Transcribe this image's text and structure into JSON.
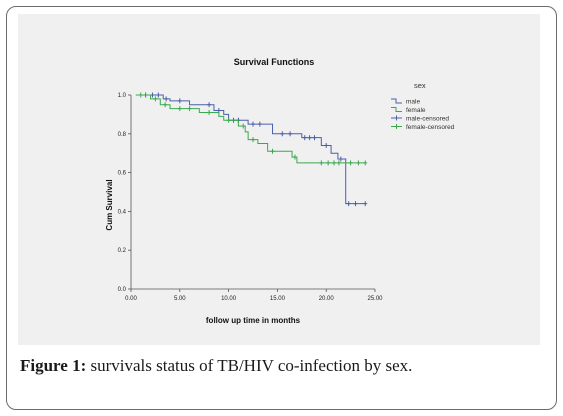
{
  "chart_data": {
    "type": "line",
    "title": "Survival Functions",
    "xlabel": "follow up time in months",
    "ylabel": "Cum Survival",
    "xlim": [
      0,
      25
    ],
    "ylim": [
      0,
      1.0
    ],
    "x_ticks": [
      {
        "value": 0,
        "label": "0.00"
      },
      {
        "value": 5,
        "label": "5.00"
      },
      {
        "value": 10,
        "label": "10.00"
      },
      {
        "value": 15,
        "label": "15.00"
      },
      {
        "value": 20,
        "label": "20.00"
      },
      {
        "value": 25,
        "label": "25.00"
      }
    ],
    "y_ticks": [
      {
        "value": 0,
        "label": "0.0"
      },
      {
        "value": 0.2,
        "label": "0.2"
      },
      {
        "value": 0.4,
        "label": "0.4"
      },
      {
        "value": 0.6,
        "label": "0.6"
      },
      {
        "value": 0.8,
        "label": "0.8"
      },
      {
        "value": 1.0,
        "label": "1.0"
      }
    ],
    "grid": false,
    "legend_title": "sex",
    "legend_position": "right",
    "legend": [
      {
        "label": "male",
        "kind": "line",
        "color": "#4a5fa8"
      },
      {
        "label": "female",
        "kind": "line",
        "color": "#3aa84e"
      },
      {
        "label": "male-censored",
        "kind": "censor",
        "color": "#4a5fa8"
      },
      {
        "label": "female-censored",
        "kind": "censor",
        "color": "#3aa84e"
      }
    ],
    "series": [
      {
        "name": "male",
        "color": "#4a5fa8",
        "steps": [
          [
            0.5,
            1.0
          ],
          [
            3.3,
            0.98
          ],
          [
            4.0,
            0.97
          ],
          [
            6.0,
            0.95
          ],
          [
            8.5,
            0.92
          ],
          [
            9.5,
            0.9
          ],
          [
            10.0,
            0.87
          ],
          [
            12.0,
            0.85
          ],
          [
            14.5,
            0.8
          ],
          [
            17.5,
            0.78
          ],
          [
            19.5,
            0.74
          ],
          [
            20.5,
            0.7
          ],
          [
            21.2,
            0.67
          ],
          [
            22.0,
            0.44
          ],
          [
            24.0,
            0.44
          ]
        ],
        "censored": [
          [
            1.5,
            1.0
          ],
          [
            2.2,
            1.0
          ],
          [
            2.8,
            1.0
          ],
          [
            3.6,
            0.98
          ],
          [
            5.0,
            0.97
          ],
          [
            8.0,
            0.95
          ],
          [
            9.0,
            0.92
          ],
          [
            10.5,
            0.87
          ],
          [
            11.0,
            0.87
          ],
          [
            12.5,
            0.85
          ],
          [
            13.2,
            0.85
          ],
          [
            15.5,
            0.8
          ],
          [
            16.3,
            0.8
          ],
          [
            17.8,
            0.78
          ],
          [
            18.3,
            0.78
          ],
          [
            18.8,
            0.78
          ],
          [
            20.0,
            0.74
          ],
          [
            21.5,
            0.67
          ],
          [
            22.3,
            0.44
          ],
          [
            23.0,
            0.44
          ],
          [
            24.0,
            0.44
          ]
        ]
      },
      {
        "name": "female",
        "color": "#3aa84e",
        "steps": [
          [
            0.5,
            1.0
          ],
          [
            2.0,
            0.98
          ],
          [
            3.0,
            0.95
          ],
          [
            4.0,
            0.93
          ],
          [
            7.0,
            0.91
          ],
          [
            9.0,
            0.89
          ],
          [
            9.5,
            0.87
          ],
          [
            11.0,
            0.84
          ],
          [
            11.7,
            0.81
          ],
          [
            12.0,
            0.77
          ],
          [
            13.0,
            0.75
          ],
          [
            14.0,
            0.71
          ],
          [
            16.5,
            0.68
          ],
          [
            17.0,
            0.65
          ],
          [
            24.0,
            0.65
          ]
        ],
        "censored": [
          [
            1.0,
            1.0
          ],
          [
            2.5,
            0.98
          ],
          [
            3.5,
            0.95
          ],
          [
            5.0,
            0.93
          ],
          [
            6.0,
            0.93
          ],
          [
            8.0,
            0.91
          ],
          [
            10.0,
            0.87
          ],
          [
            11.5,
            0.84
          ],
          [
            12.5,
            0.77
          ],
          [
            14.5,
            0.71
          ],
          [
            16.8,
            0.68
          ],
          [
            19.5,
            0.65
          ],
          [
            20.2,
            0.65
          ],
          [
            20.8,
            0.65
          ],
          [
            21.3,
            0.65
          ],
          [
            22.5,
            0.65
          ],
          [
            23.3,
            0.65
          ],
          [
            24.0,
            0.65
          ]
        ]
      }
    ]
  },
  "caption": {
    "label": "Figure 1:",
    "text": " survivals status of TB/HIV co-infection by sex."
  }
}
